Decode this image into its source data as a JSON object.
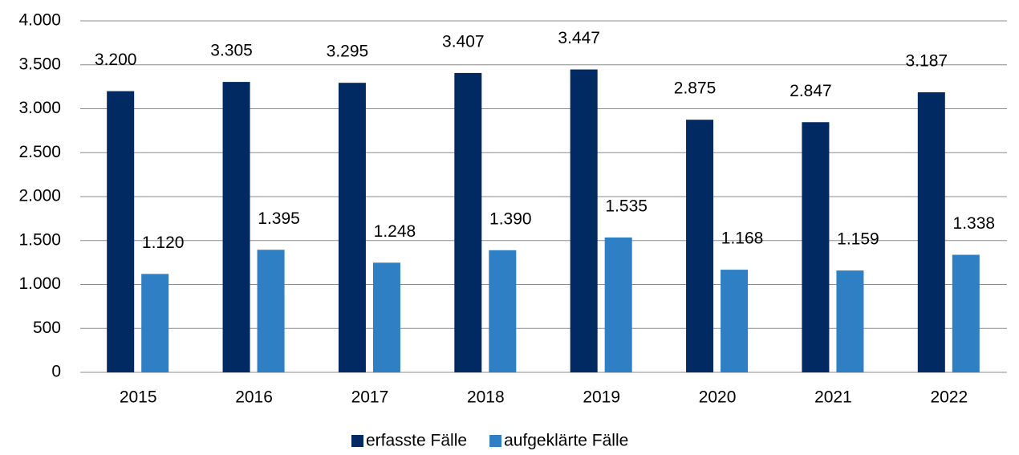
{
  "chart_data": {
    "type": "bar",
    "categories": [
      "2015",
      "2016",
      "2017",
      "2018",
      "2019",
      "2020",
      "2021",
      "2022"
    ],
    "series": [
      {
        "name": "erfasste Fälle",
        "color": "#012a62",
        "values": [
          3200,
          3305,
          3295,
          3407,
          3447,
          2875,
          2847,
          3187
        ],
        "value_labels": [
          "3.200",
          "3.305",
          "3.295",
          "3.407",
          "3.447",
          "2.875",
          "2.847",
          "3.187"
        ]
      },
      {
        "name": "aufgeklärte Fälle",
        "color": "#2f7fc5",
        "values": [
          1120,
          1395,
          1248,
          1390,
          1535,
          1168,
          1159,
          1338
        ],
        "value_labels": [
          "1.120",
          "1.395",
          "1.248",
          "1.390",
          "1.535",
          "1.168",
          "1.159",
          "1.338"
        ]
      }
    ],
    "ylim": [
      0,
      4000
    ],
    "yticks": [
      0,
      500,
      {
        "value": 1000,
        "label": "1.000"
      },
      {
        "value": 1500,
        "label": "1.500"
      },
      {
        "value": 2000,
        "label": "2.000"
      },
      {
        "value": 2500,
        "label": "2.500"
      },
      {
        "value": 3000,
        "label": "3.000"
      },
      {
        "value": 3500,
        "label": "3.500"
      },
      {
        "value": 4000,
        "label": "4.000"
      }
    ],
    "grid": true,
    "legend": "bottom"
  }
}
